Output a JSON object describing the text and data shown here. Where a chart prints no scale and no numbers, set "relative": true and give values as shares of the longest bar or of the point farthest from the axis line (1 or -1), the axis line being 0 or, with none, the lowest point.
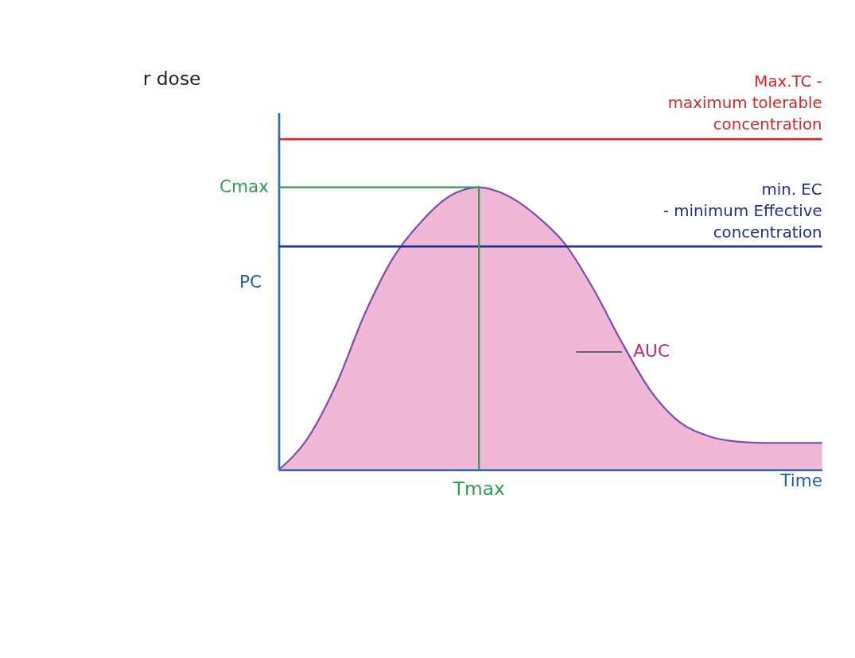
{
  "chart_data": {
    "type": "area",
    "relative": true,
    "xlabel": "Time",
    "ylabel": "PC",
    "categories": [
      null,
      null,
      null,
      null,
      null,
      null,
      null,
      null,
      null,
      null,
      null,
      null,
      null,
      null,
      null,
      null,
      null,
      null,
      null,
      null
    ],
    "series": [
      {
        "color": "#d6338a",
        "values": [
          0,
          0.11,
          0.3,
          0.55,
          0.75,
          0.88,
          0.97,
          1.0,
          0.97,
          0.9,
          0.8,
          0.64,
          0.45,
          0.28,
          0.17,
          0.12,
          0.1,
          0.095,
          0.095,
          0.095
        ]
      }
    ],
    "ref_lines": [
      {
        "axis": "y",
        "value": 1.17,
        "label": "Max.TC - maximum tolerable concentration",
        "color": "#d62728"
      },
      {
        "axis": "y",
        "value": 0.79,
        "label": "min. EC - minimum Effective concentration",
        "color": "#1f2f8a"
      },
      {
        "axis": "y",
        "value": 1.0,
        "label": "Cmax",
        "color": "#2e9e4f"
      }
    ],
    "annotations": [
      "r dose",
      "Tmax",
      "AUC"
    ],
    "grid": false
  }
}
